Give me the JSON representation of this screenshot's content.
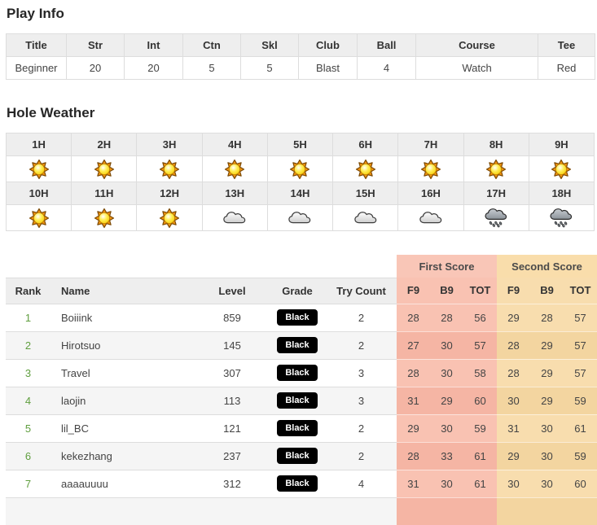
{
  "play_info": {
    "title": "Play Info",
    "columns": [
      "Title",
      "Str",
      "Int",
      "Ctn",
      "Skl",
      "Club",
      "Ball",
      "Course",
      "Tee"
    ],
    "values": [
      "Beginner",
      "20",
      "20",
      "5",
      "5",
      "Blast",
      "4",
      "Watch",
      "Red"
    ]
  },
  "hole_weather": {
    "title": "Hole Weather",
    "rows": [
      {
        "hours": [
          "1H",
          "2H",
          "3H",
          "4H",
          "5H",
          "6H",
          "7H",
          "8H",
          "9H"
        ],
        "icons": [
          "sun",
          "sun",
          "sun",
          "sun",
          "sun",
          "sun",
          "sun",
          "sun",
          "sun"
        ]
      },
      {
        "hours": [
          "10H",
          "11H",
          "12H",
          "13H",
          "14H",
          "15H",
          "16H",
          "17H",
          "18H"
        ],
        "icons": [
          "sun",
          "sun",
          "sun",
          "cloud",
          "cloud",
          "cloud",
          "cloud",
          "rain",
          "rain"
        ]
      }
    ]
  },
  "leaderboard": {
    "group_headers": {
      "first": "First Score",
      "second": "Second Score"
    },
    "columns": [
      "Rank",
      "Name",
      "Level",
      "Grade",
      "Try Count",
      "F9",
      "B9",
      "TOT",
      "F9",
      "B9",
      "TOT"
    ],
    "rows": [
      {
        "rank": "1",
        "name": "Boiiink",
        "level": "859",
        "grade": "Black",
        "try_count": "2",
        "first": [
          "28",
          "28",
          "56"
        ],
        "second": [
          "29",
          "28",
          "57"
        ]
      },
      {
        "rank": "2",
        "name": "Hirotsuo",
        "level": "145",
        "grade": "Black",
        "try_count": "2",
        "first": [
          "27",
          "30",
          "57"
        ],
        "second": [
          "28",
          "29",
          "57"
        ]
      },
      {
        "rank": "3",
        "name": "Travel",
        "level": "307",
        "grade": "Black",
        "try_count": "3",
        "first": [
          "28",
          "30",
          "58"
        ],
        "second": [
          "28",
          "29",
          "57"
        ]
      },
      {
        "rank": "4",
        "name": "laojin",
        "level": "113",
        "grade": "Black",
        "try_count": "3",
        "first": [
          "31",
          "29",
          "60"
        ],
        "second": [
          "30",
          "29",
          "59"
        ]
      },
      {
        "rank": "5",
        "name": "lil_BC",
        "level": "121",
        "grade": "Black",
        "try_count": "2",
        "first": [
          "29",
          "30",
          "59"
        ],
        "second": [
          "31",
          "30",
          "61"
        ]
      },
      {
        "rank": "6",
        "name": "kekezhang",
        "level": "237",
        "grade": "Black",
        "try_count": "2",
        "first": [
          "28",
          "33",
          "61"
        ],
        "second": [
          "29",
          "30",
          "59"
        ]
      },
      {
        "rank": "7",
        "name": "aaaauuuu",
        "level": "312",
        "grade": "Black",
        "try_count": "4",
        "first": [
          "31",
          "30",
          "61"
        ],
        "second": [
          "30",
          "30",
          "60"
        ]
      }
    ]
  },
  "colors": {
    "first_score_header": "#f9c6b7",
    "first_score_cell": "#f9c2b2",
    "first_score_cell_shaded": "#f5b5a4",
    "second_score_header": "#f9ddab",
    "second_score_cell": "#f8ddae",
    "second_score_cell_shaded": "#f3d5a0",
    "rank_text": "#5f9e3e",
    "grade_badge_bg": "#000000",
    "grade_badge_text": "#ffffff",
    "header_bg": "#eeeeee",
    "row_alt_bg": "#f5f5f5",
    "border": "#dddddd"
  }
}
